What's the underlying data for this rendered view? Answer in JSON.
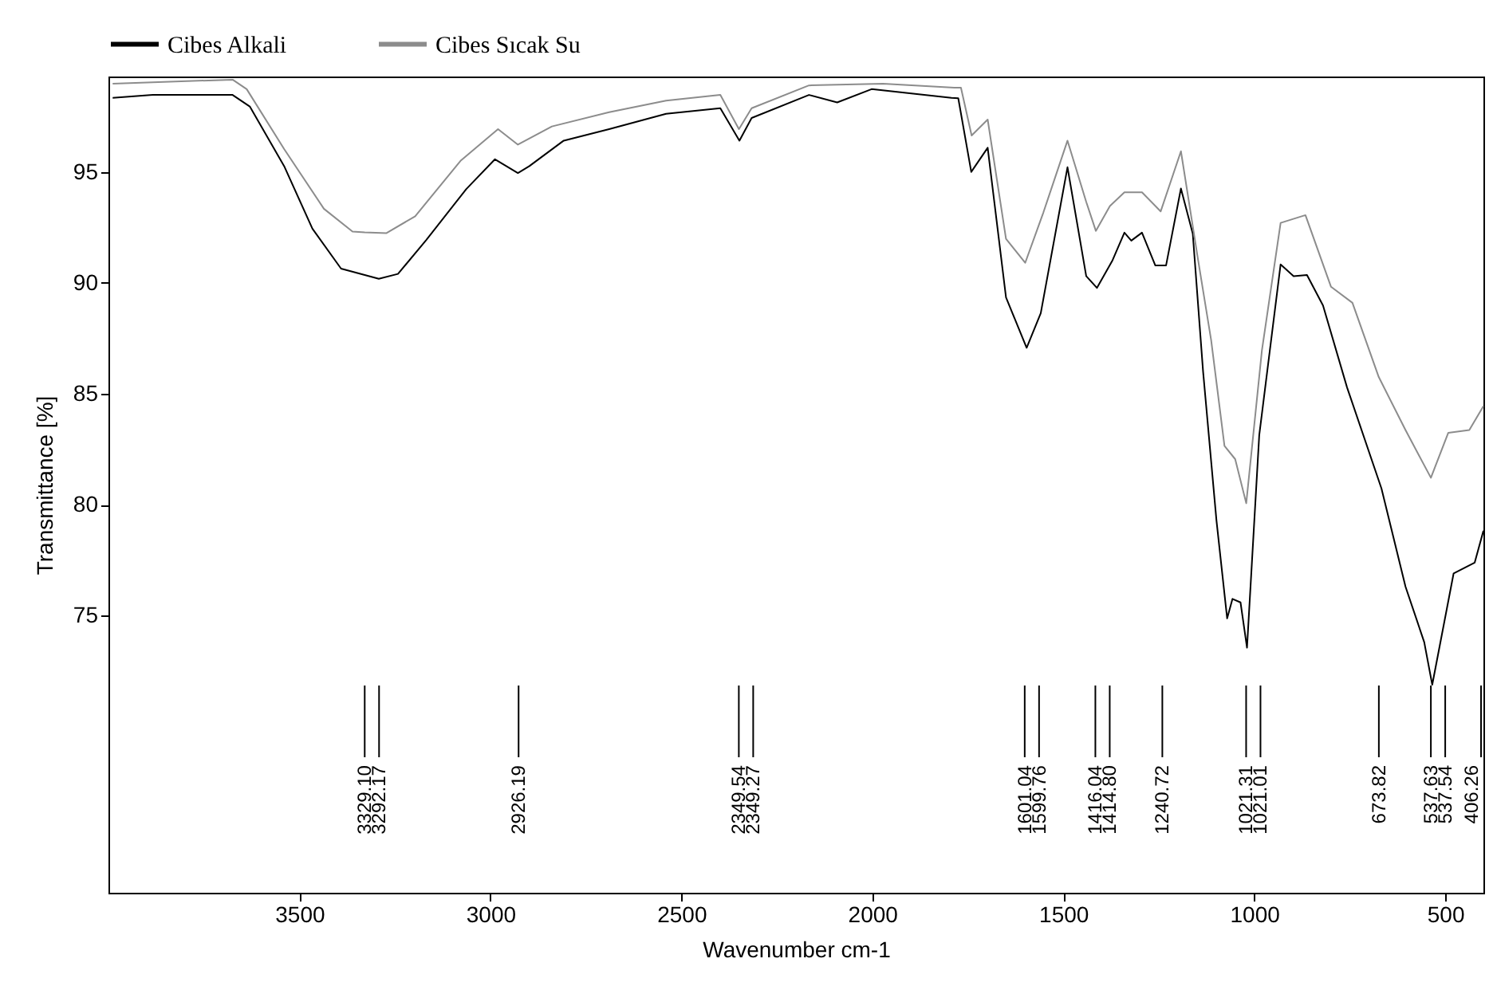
{
  "chart_data": {
    "type": "line",
    "xlabel": "Wavenumber cm-1",
    "ylabel": "Transmittance [%]",
    "xlim": [
      4000,
      400
    ],
    "ylim": [
      62.5,
      99.3
    ],
    "xticks": [
      {
        "value": 3500,
        "label": "3500"
      },
      {
        "value": 3000,
        "label": "3000"
      },
      {
        "value": 2500,
        "label": "2500"
      },
      {
        "value": 2000,
        "label": "2000"
      },
      {
        "value": 1500,
        "label": "1500"
      },
      {
        "value": 1000,
        "label": "1000"
      },
      500
    ],
    "yticks": [
      75,
      80,
      85,
      90,
      95
    ],
    "legend": "top",
    "grid": false,
    "marker": "none",
    "line_style": "solid",
    "series": [
      {
        "name": "Cibes Alkali",
        "color": "#000000",
        "x": [
          3989,
          3884,
          3675,
          3630,
          3540,
          3466,
          3391,
          3292.17,
          3242,
          3168,
          3063,
          2988,
          2928,
          2898,
          2808,
          2689,
          2540,
          2398,
          2348,
          2316,
          2166,
          2092,
          2002,
          1793,
          1775,
          1741,
          1698,
          1650,
          1596,
          1559,
          1489,
          1440,
          1412,
          1371,
          1340,
          1322,
          1294,
          1259,
          1231,
          1192,
          1161,
          1134,
          1099,
          1071,
          1057,
          1036,
          1019,
          987,
          931,
          897,
          862,
          820,
          757,
          667,
          604,
          555,
          534,
          478,
          423,
          400
        ],
        "values": [
          98.34,
          98.47,
          98.47,
          97.95,
          95.26,
          92.44,
          90.64,
          90.18,
          90.4,
          91.93,
          94.23,
          95.57,
          94.95,
          95.26,
          96.41,
          96.93,
          97.62,
          97.87,
          96.41,
          97.43,
          98.47,
          98.13,
          98.73,
          98.34,
          98.32,
          95.0,
          96.09,
          89.34,
          87.07,
          88.63,
          95.21,
          90.3,
          89.77,
          91.02,
          92.26,
          91.9,
          92.26,
          90.78,
          90.78,
          94.25,
          92.21,
          86.0,
          79.29,
          74.87,
          75.75,
          75.59,
          73.55,
          83.13,
          90.83,
          90.3,
          90.35,
          88.98,
          85.28,
          80.73,
          76.3,
          73.8,
          71.88,
          76.9,
          77.38,
          78.82
        ]
      },
      {
        "name": "Cibes Sıcak Su",
        "color": "#8c8c8c",
        "x": [
          3989,
          3675,
          3638,
          3540,
          3436,
          3361,
          3329.1,
          3272,
          3197,
          3077,
          2980,
          2928,
          2839,
          2689,
          2540,
          2398,
          2349.27,
          2316,
          2166,
          1972,
          1785,
          1768,
          1740,
          1698,
          1650,
          1599.76,
          1552,
          1489,
          1440,
          1414.8,
          1378,
          1340,
          1294,
          1245,
          1192,
          1147,
          1113,
          1078,
          1050,
          1021.01,
          980,
          931,
          866,
          799,
          743,
          674,
          604,
          537.54,
          492,
          437,
          400
        ],
        "values": [
          98.98,
          99.16,
          98.73,
          96.03,
          93.34,
          92.31,
          92.27,
          92.24,
          93.0,
          95.52,
          96.93,
          96.23,
          97.05,
          97.69,
          98.21,
          98.47,
          96.93,
          97.87,
          98.9,
          98.98,
          98.8,
          98.8,
          96.64,
          97.36,
          91.98,
          90.9,
          93.18,
          96.41,
          93.65,
          92.34,
          93.46,
          94.08,
          94.08,
          93.22,
          95.93,
          91.02,
          87.43,
          82.65,
          82.05,
          80.06,
          86.95,
          92.7,
          93.05,
          89.82,
          89.1,
          85.75,
          83.36,
          81.21,
          83.24,
          83.36,
          84.44
        ]
      }
    ],
    "annotations": [
      {
        "text": "3329.10",
        "x": 3329.1
      },
      "3292.17",
      {
        "text": "2926.19",
        "x": 2926.19
      },
      {
        "text": "2349.54",
        "x": 2349.54
      },
      "2349.27",
      {
        "text": "1601.04",
        "x": 1601.04
      },
      "1599.76",
      {
        "text": "1416.04",
        "x": 1416.04
      },
      "1414.80",
      {
        "text": "1240.72",
        "x": 1240.72
      },
      {
        "text": "1021.31",
        "x": 1021.31
      },
      "1021.01",
      {
        "text": "673.82",
        "x": 673.82
      },
      {
        "text": "537.63",
        "x": 537.63
      },
      "537.54",
      {
        "text": "406.26",
        "x": 406.26
      }
    ]
  }
}
